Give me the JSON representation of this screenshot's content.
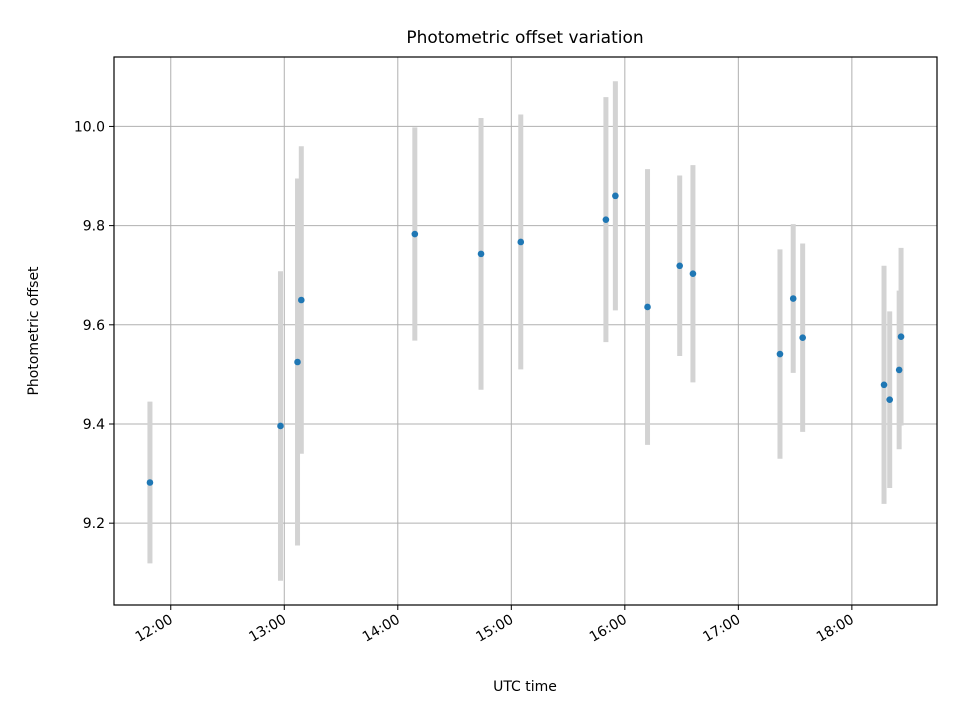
{
  "chart_data": {
    "type": "scatter",
    "title": "Photometric offset variation",
    "xlabel": "UTC time",
    "ylabel": "Photometric offset",
    "x_ticks": [
      "12:00",
      "13:00",
      "14:00",
      "15:00",
      "16:00",
      "17:00",
      "18:00"
    ],
    "y_ticks": [
      "9.2",
      "9.4",
      "9.6",
      "9.8",
      "10.0"
    ],
    "xlim": [
      "11:30",
      "18:45"
    ],
    "ylim": [
      9.035,
      10.14
    ],
    "grid": true,
    "errorbar_color": "#d3d3d3",
    "point_color": "#1f77b4",
    "points": [
      {
        "x": "11:49",
        "y": 9.282,
        "err": 0.163
      },
      {
        "x": "12:58",
        "y": 9.396,
        "err": 0.312
      },
      {
        "x": "13:07",
        "y": 9.525,
        "err": 0.37
      },
      {
        "x": "13:09",
        "y": 9.65,
        "err": 0.31
      },
      {
        "x": "14:09",
        "y": 9.783,
        "err": 0.215
      },
      {
        "x": "14:44",
        "y": 9.743,
        "err": 0.274
      },
      {
        "x": "15:05",
        "y": 9.767,
        "err": 0.257
      },
      {
        "x": "15:50",
        "y": 9.812,
        "err": 0.247
      },
      {
        "x": "15:55",
        "y": 9.86,
        "err": 0.231
      },
      {
        "x": "16:12",
        "y": 9.636,
        "err": 0.278
      },
      {
        "x": "16:29",
        "y": 9.719,
        "err": 0.182
      },
      {
        "x": "16:36",
        "y": 9.703,
        "err": 0.219
      },
      {
        "x": "17:22",
        "y": 9.541,
        "err": 0.211
      },
      {
        "x": "17:29",
        "y": 9.653,
        "err": 0.15
      },
      {
        "x": "17:34",
        "y": 9.574,
        "err": 0.19
      },
      {
        "x": "18:17",
        "y": 9.479,
        "err": 0.24
      },
      {
        "x": "18:20",
        "y": 9.449,
        "err": 0.178
      },
      {
        "x": "18:25",
        "y": 9.509,
        "err": 0.16
      },
      {
        "x": "18:26",
        "y": 9.576,
        "err": 0.179
      }
    ]
  }
}
